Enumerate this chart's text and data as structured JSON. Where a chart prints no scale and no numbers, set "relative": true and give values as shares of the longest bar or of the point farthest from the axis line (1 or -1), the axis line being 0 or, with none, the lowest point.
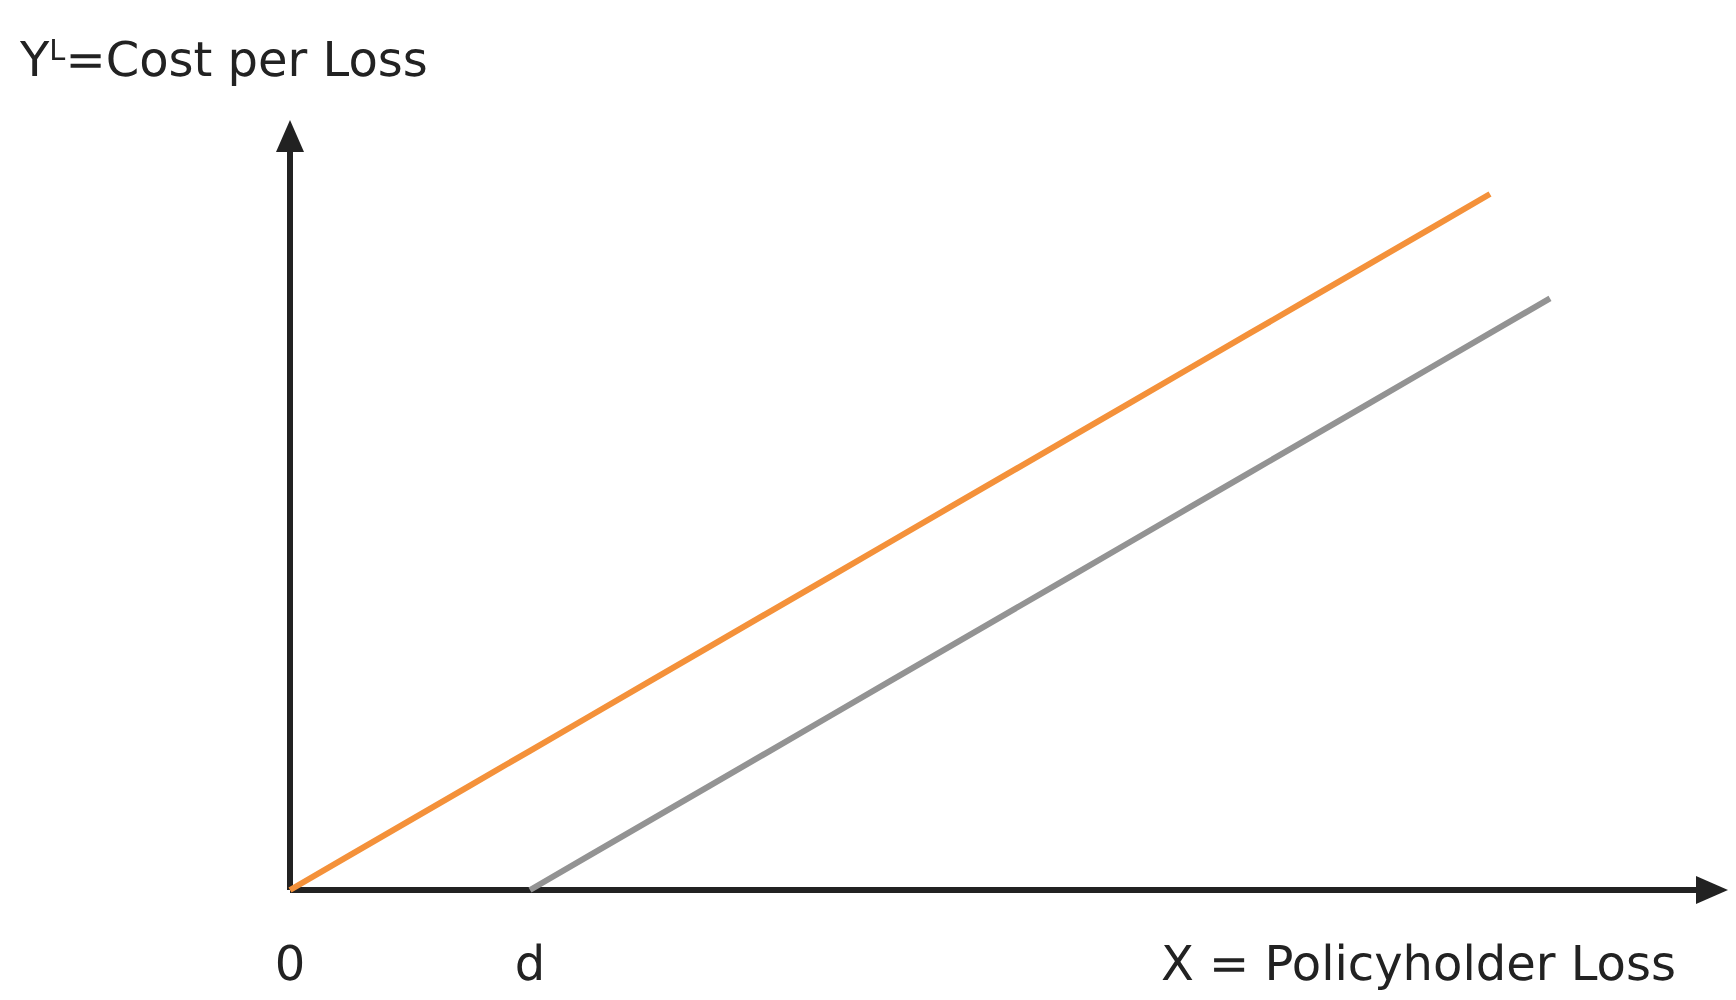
{
  "chart_data": {
    "type": "line",
    "relative": true,
    "ylabel": "Y$^{L}$=Cost per Loss",
    "xlabel": "X = Policyholder Loss",
    "categories": [
      "0",
      null,
      null,
      null,
      "d",
      null,
      null,
      null,
      null,
      null,
      null,
      null,
      null,
      null,
      null,
      null,
      null,
      null,
      null,
      null,
      null,
      null,
      null,
      null
    ],
    "tick_labels": "x",
    "marker": "none",
    "line_style": "solid",
    "series": [
      {
        "color": "#f4913a",
        "values": [
          0,
          0.05,
          0.1,
          0.15,
          0.2,
          0.25,
          0.3,
          0.35,
          0.4,
          0.45,
          0.5,
          0.55,
          0.6,
          0.65,
          0.7,
          0.75,
          0.8,
          0.85,
          0.9,
          0.95,
          1,
          null,
          null,
          null
        ]
      },
      {
        "color": "#939393",
        "values": [
          null,
          null,
          null,
          null,
          0,
          0.05,
          0.1,
          0.15,
          0.2,
          0.25,
          0.3,
          0.35,
          0.4,
          0.45,
          0.5,
          0.55,
          0.6,
          0.65,
          0.7,
          0.75,
          0.8,
          0.85,
          null,
          null
        ]
      }
    ]
  }
}
